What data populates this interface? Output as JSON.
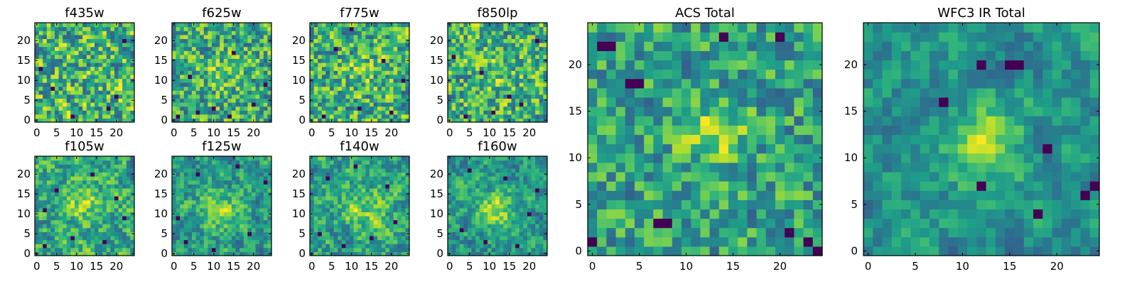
{
  "figure": {
    "background": "#ffffff"
  },
  "chart_data": [
    {
      "type": "heatmap",
      "title": "f435w",
      "xlabel": "",
      "ylabel": "",
      "grid_size": [
        25,
        25
      ],
      "xlim": [
        -0.5,
        24.5
      ],
      "ylim": [
        -0.5,
        24.5
      ],
      "xticks": [
        "0",
        "5",
        "10",
        "15",
        "20"
      ],
      "yticks": [
        "0",
        "5",
        "10",
        "15",
        "20"
      ],
      "colormap": "viridis",
      "seed": 11,
      "smoothness": 0.15,
      "blob": {
        "cx": 12,
        "cy": 12,
        "amp": 0.0,
        "sigma": 4
      },
      "dark_pixels": [
        [
          9,
          1
        ],
        [
          18,
          3
        ],
        [
          1,
          13
        ],
        [
          22,
          20
        ],
        [
          4,
          8
        ],
        [
          20,
          6
        ]
      ],
      "grid": false,
      "legend": "none"
    },
    {
      "type": "heatmap",
      "title": "f625w",
      "xlabel": "",
      "ylabel": "",
      "grid_size": [
        25,
        25
      ],
      "xlim": [
        -0.5,
        24.5
      ],
      "ylim": [
        -0.5,
        24.5
      ],
      "xticks": [
        "0",
        "5",
        "10",
        "15",
        "20"
      ],
      "yticks": [
        "0",
        "5",
        "10",
        "15",
        "20"
      ],
      "colormap": "viridis",
      "seed": 23,
      "smoothness": 0.15,
      "blob": {
        "cx": 13,
        "cy": 12,
        "amp": 0.25,
        "sigma": 3
      },
      "dark_pixels": [
        [
          1,
          1
        ],
        [
          6,
          2
        ],
        [
          14,
          1
        ],
        [
          20,
          4
        ],
        [
          23,
          9
        ],
        [
          15,
          17
        ],
        [
          10,
          3
        ],
        [
          4,
          11
        ]
      ],
      "grid": false,
      "legend": "none"
    },
    {
      "type": "heatmap",
      "title": "f775w",
      "xlabel": "",
      "ylabel": "",
      "grid_size": [
        25,
        25
      ],
      "xlim": [
        -0.5,
        24.5
      ],
      "ylim": [
        -0.5,
        24.5
      ],
      "xticks": [
        "0",
        "5",
        "10",
        "15",
        "20"
      ],
      "yticks": [
        "0",
        "5",
        "10",
        "15",
        "20"
      ],
      "colormap": "viridis",
      "seed": 37,
      "smoothness": 0.15,
      "blob": {
        "cx": 13,
        "cy": 12,
        "amp": 0.15,
        "sigma": 3
      },
      "dark_pixels": [
        [
          3,
          1
        ],
        [
          12,
          3
        ],
        [
          20,
          2
        ],
        [
          6,
          18
        ],
        [
          18,
          15
        ],
        [
          10,
          23
        ],
        [
          23,
          10
        ]
      ],
      "grid": false,
      "legend": "none"
    },
    {
      "type": "heatmap",
      "title": "f850lp",
      "xlabel": "",
      "ylabel": "",
      "grid_size": [
        25,
        25
      ],
      "xlim": [
        -0.5,
        24.5
      ],
      "ylim": [
        -0.5,
        24.5
      ],
      "xticks": [
        "0",
        "5",
        "10",
        "15",
        "20"
      ],
      "yticks": [
        "0",
        "5",
        "10",
        "15",
        "20"
      ],
      "colormap": "viridis",
      "seed": 41,
      "smoothness": 0.15,
      "blob": {
        "cx": 13,
        "cy": 12,
        "amp": 0.15,
        "sigma": 3
      },
      "dark_pixels": [
        [
          4,
          1
        ],
        [
          11,
          2
        ],
        [
          18,
          4
        ],
        [
          1,
          16
        ],
        [
          22,
          20
        ],
        [
          8,
          12
        ],
        [
          15,
          6
        ]
      ],
      "grid": false,
      "legend": "none"
    },
    {
      "type": "heatmap",
      "title": "f105w",
      "xlabel": "",
      "ylabel": "",
      "grid_size": [
        25,
        25
      ],
      "xlim": [
        -0.5,
        24.5
      ],
      "ylim": [
        -0.5,
        24.5
      ],
      "xticks": [
        "0",
        "5",
        "10",
        "15",
        "20"
      ],
      "yticks": [
        "0",
        "5",
        "10",
        "15",
        "20"
      ],
      "colormap": "viridis",
      "seed": 53,
      "smoothness": 0.45,
      "blob": {
        "cx": 12,
        "cy": 13,
        "amp": 0.25,
        "sigma": 4
      },
      "dark_pixels": [
        [
          2,
          2
        ],
        [
          9,
          4
        ],
        [
          17,
          3
        ],
        [
          22,
          9
        ],
        [
          5,
          16
        ],
        [
          14,
          20
        ],
        [
          20,
          14
        ],
        [
          2,
          11
        ]
      ],
      "grid": false,
      "legend": "none"
    },
    {
      "type": "heatmap",
      "title": "f125w",
      "xlabel": "",
      "ylabel": "",
      "grid_size": [
        25,
        25
      ],
      "xlim": [
        -0.5,
        24.5
      ],
      "ylim": [
        -0.5,
        24.5
      ],
      "xticks": [
        "0",
        "5",
        "10",
        "15",
        "20"
      ],
      "yticks": [
        "0",
        "5",
        "10",
        "15",
        "20"
      ],
      "colormap": "viridis",
      "seed": 67,
      "smoothness": 0.45,
      "blob": {
        "cx": 12,
        "cy": 11,
        "amp": 0.35,
        "sigma": 4
      },
      "dark_pixels": [
        [
          3,
          3
        ],
        [
          10,
          1
        ],
        [
          19,
          5
        ],
        [
          23,
          18
        ],
        [
          6,
          20
        ],
        [
          16,
          22
        ],
        [
          1,
          9
        ]
      ],
      "grid": false,
      "legend": "none"
    },
    {
      "type": "heatmap",
      "title": "f140w",
      "xlabel": "",
      "ylabel": "",
      "grid_size": [
        25,
        25
      ],
      "xlim": [
        -0.5,
        24.5
      ],
      "ylim": [
        -0.5,
        24.5
      ],
      "xticks": [
        "0",
        "5",
        "10",
        "15",
        "20"
      ],
      "yticks": [
        "0",
        "5",
        "10",
        "15",
        "20"
      ],
      "colormap": "viridis",
      "seed": 79,
      "smoothness": 0.45,
      "blob": {
        "cx": 13,
        "cy": 11,
        "amp": 0.35,
        "sigma": 4
      },
      "dark_pixels": [
        [
          2,
          5
        ],
        [
          8,
          2
        ],
        [
          15,
          4
        ],
        [
          21,
          8
        ],
        [
          4,
          19
        ],
        [
          11,
          22
        ],
        [
          19,
          17
        ]
      ],
      "grid": false,
      "legend": "none"
    },
    {
      "type": "heatmap",
      "title": "f160w",
      "xlabel": "",
      "ylabel": "",
      "grid_size": [
        25,
        25
      ],
      "xlim": [
        -0.5,
        24.5
      ],
      "ylim": [
        -0.5,
        24.5
      ],
      "xticks": [
        "0",
        "5",
        "10",
        "15",
        "20"
      ],
      "yticks": [
        "0",
        "5",
        "10",
        "15",
        "20"
      ],
      "colormap": "viridis",
      "seed": 83,
      "smoothness": 0.5,
      "blob": {
        "cx": 12,
        "cy": 11,
        "amp": 0.5,
        "sigma": 4
      },
      "dark_pixels": [
        [
          3,
          6
        ],
        [
          9,
          3
        ],
        [
          17,
          2
        ],
        [
          22,
          16
        ],
        [
          5,
          21
        ],
        [
          14,
          19
        ],
        [
          20,
          10
        ]
      ],
      "grid": false,
      "legend": "none"
    },
    {
      "type": "heatmap",
      "title": "ACS Total",
      "xlabel": "",
      "ylabel": "",
      "grid_size": [
        25,
        25
      ],
      "xlim": [
        -0.5,
        24.5
      ],
      "ylim": [
        -0.5,
        24.5
      ],
      "xticks": [
        "0",
        "5",
        "10",
        "15",
        "20"
      ],
      "yticks": [
        "0",
        "5",
        "10",
        "15",
        "20"
      ],
      "colormap": "viridis",
      "seed": 97,
      "smoothness": 0.2,
      "blob": {
        "cx": 13,
        "cy": 13,
        "amp": 0.45,
        "sigma": 2.5
      },
      "dark_pixels": [
        [
          0,
          1
        ],
        [
          1,
          22
        ],
        [
          2,
          22
        ],
        [
          4,
          18
        ],
        [
          5,
          18
        ],
        [
          7,
          3
        ],
        [
          8,
          3
        ],
        [
          14,
          23
        ],
        [
          20,
          23
        ],
        [
          21,
          2
        ],
        [
          23,
          1
        ],
        [
          24,
          0
        ]
      ],
      "grid": false,
      "legend": "none"
    },
    {
      "type": "heatmap",
      "title": "WFC3 IR Total",
      "xlabel": "",
      "ylabel": "",
      "grid_size": [
        25,
        25
      ],
      "xlim": [
        -0.5,
        24.5
      ],
      "ylim": [
        -0.5,
        24.5
      ],
      "xticks": [
        "0",
        "5",
        "10",
        "15",
        "20"
      ],
      "yticks": [
        "0",
        "5",
        "10",
        "15",
        "20"
      ],
      "colormap": "viridis",
      "seed": 101,
      "smoothness": 0.55,
      "blob": {
        "cx": 12,
        "cy": 12,
        "amp": 0.5,
        "sigma": 3
      },
      "dark_pixels": [
        [
          12,
          20
        ],
        [
          15,
          20
        ],
        [
          16,
          20
        ],
        [
          8,
          16
        ],
        [
          19,
          11
        ],
        [
          12,
          7
        ],
        [
          18,
          4
        ],
        [
          24,
          7
        ],
        [
          23,
          6
        ]
      ],
      "grid": false,
      "legend": "none"
    }
  ]
}
